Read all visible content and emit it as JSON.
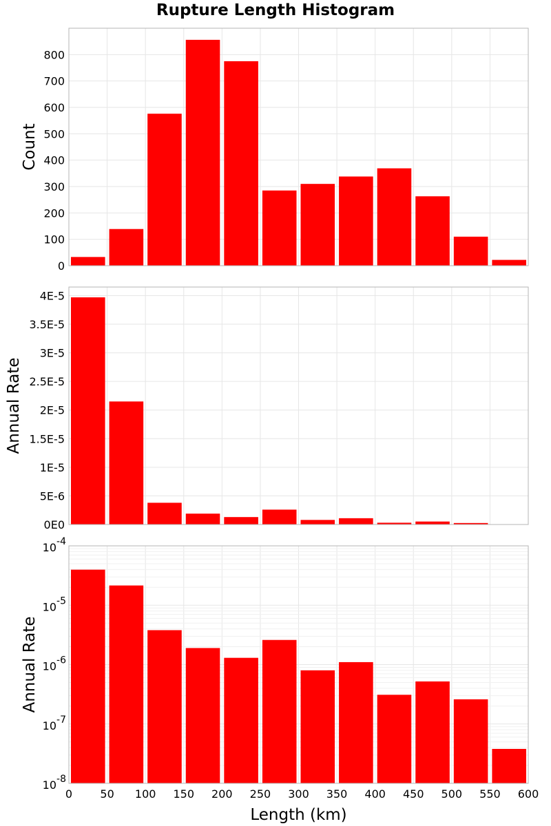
{
  "title": "Rupture Length Histogram",
  "colors": {
    "bar": "#ff0000",
    "frame": "#b4b4b4",
    "grid": "#e6e6e6"
  },
  "chart_data": [
    {
      "type": "bar",
      "ylabel": "Count",
      "xlabel": "",
      "bin_width": 50,
      "x": [
        25,
        75,
        125,
        175,
        225,
        275,
        325,
        375,
        425,
        475,
        525,
        575
      ],
      "values": [
        33,
        139,
        576,
        856,
        775,
        285,
        310,
        338,
        369,
        263,
        110,
        22
      ],
      "xlim": [
        0,
        600
      ],
      "ylim": [
        0,
        900
      ],
      "y_ticks": [
        0,
        100,
        200,
        300,
        400,
        500,
        600,
        700,
        800
      ],
      "y_tick_labels": [
        "0",
        "100",
        "200",
        "300",
        "400",
        "500",
        "600",
        "700",
        "800"
      ],
      "scale": "linear",
      "grid": true
    },
    {
      "type": "bar",
      "ylabel": "Annual Rate",
      "xlabel": "",
      "bin_width": 50,
      "x": [
        25,
        75,
        125,
        175,
        225,
        275,
        325,
        375,
        425,
        475,
        525,
        575
      ],
      "values": [
        3.97e-05,
        2.15e-05,
        3.8e-06,
        1.9e-06,
        1.3e-06,
        2.6e-06,
        8e-07,
        1.1e-06,
        3.1e-07,
        5.2e-07,
        2.6e-07,
        3.8e-08
      ],
      "xlim": [
        0,
        600
      ],
      "ylim": [
        0,
        4.15e-05
      ],
      "y_ticks": [
        0,
        5e-06,
        1e-05,
        1.5e-05,
        2e-05,
        2.5e-05,
        3e-05,
        3.5e-05,
        4e-05
      ],
      "y_tick_labels": [
        "0E0",
        "5E-6",
        "1E-5",
        "1.5E-5",
        "2E-5",
        "2.5E-5",
        "3E-5",
        "3.5E-5",
        "4E-5"
      ],
      "scale": "linear",
      "grid": true
    },
    {
      "type": "bar",
      "ylabel": "Annual Rate",
      "xlabel": "Length (km)",
      "bin_width": 50,
      "x": [
        25,
        75,
        125,
        175,
        225,
        275,
        325,
        375,
        425,
        475,
        525,
        575
      ],
      "values": [
        3.97e-05,
        2.15e-05,
        3.8e-06,
        1.9e-06,
        1.3e-06,
        2.6e-06,
        8e-07,
        1.1e-06,
        3.1e-07,
        5.2e-07,
        2.6e-07,
        3.8e-08
      ],
      "xlim": [
        0,
        600
      ],
      "ylim": [
        1e-08,
        0.0001
      ],
      "y_tick_exponents": [
        "-8",
        "-7",
        "-6",
        "-5",
        "-4"
      ],
      "y_tick_base": "10",
      "x_ticks": [
        0,
        50,
        100,
        150,
        200,
        250,
        300,
        350,
        400,
        450,
        500,
        550,
        600
      ],
      "x_tick_labels": [
        "0",
        "50",
        "100",
        "150",
        "200",
        "250",
        "300",
        "350",
        "400",
        "450",
        "500",
        "550",
        "600"
      ],
      "scale": "log",
      "grid": true
    }
  ]
}
